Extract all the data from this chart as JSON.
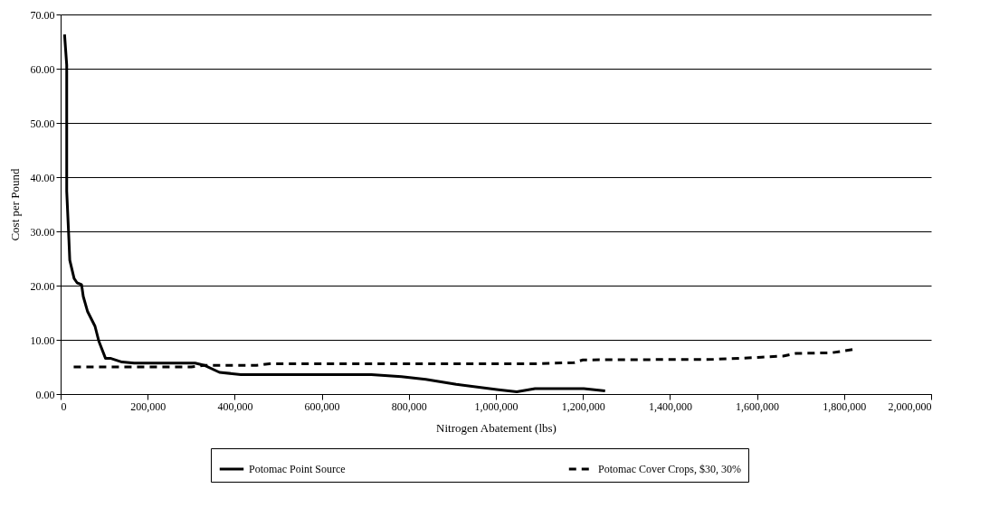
{
  "chart_data": {
    "type": "line",
    "xlabel": "Nitrogen Abatement (lbs)",
    "ylabel": "Cost per Pound",
    "xlim": [
      0,
      2000000
    ],
    "ylim": [
      0,
      70
    ],
    "xticks": [
      0,
      {
        "value": 200000,
        "label": "200,000"
      },
      {
        "value": 400000,
        "label": "400,000"
      },
      {
        "value": 600000,
        "label": "600,000"
      },
      {
        "value": 800000,
        "label": "800,000"
      },
      {
        "value": 1000000,
        "label": "1,000,000"
      },
      {
        "value": 1200000,
        "label": "1,200,000"
      },
      {
        "value": 1400000,
        "label": "1,400,000"
      },
      {
        "value": 1600000,
        "label": "1,600,000"
      },
      {
        "value": 1800000,
        "label": "1,800,000"
      },
      {
        "value": 2000000,
        "label": "2,000,000"
      }
    ],
    "yticks": [
      {
        "value": 0,
        "label": "0.00"
      },
      {
        "value": 10,
        "label": "10.00"
      },
      {
        "value": 20,
        "label": "20.00"
      },
      {
        "value": 30,
        "label": "30.00"
      },
      {
        "value": 40,
        "label": "40.00"
      },
      {
        "value": 50,
        "label": "50.00"
      },
      {
        "value": 60,
        "label": "60.00"
      },
      {
        "value": 70,
        "label": "70.00"
      }
    ],
    "grid": "y",
    "legend": "bottom",
    "marker": "none",
    "series": [
      {
        "name": "Potomac Point Source",
        "color": "#000000",
        "line_style": "solid",
        "x": [
          9000,
          14000,
          14000,
          19000,
          21000,
          31000,
          38000,
          48000,
          52000,
          62000,
          79000,
          88000,
          103000,
          114000,
          141000,
          169000,
          309000,
          330000,
          365000,
          414000,
          714000,
          783000,
          839000,
          909000,
          1006000,
          1048000,
          1090000,
          1202000,
          1251000
        ],
        "values": [
          66.3,
          60.7,
          37.4,
          28.5,
          24.7,
          21.3,
          20.5,
          20.2,
          18,
          15.2,
          12.5,
          9.7,
          6.6,
          6.6,
          5.9,
          5.7,
          5.7,
          5.3,
          4.0,
          3.6,
          3.6,
          3.2,
          2.7,
          1.8,
          0.8,
          0.4,
          1.0,
          1.0,
          0.6
        ]
      },
      {
        "name": "Potomac Cover Crops, $30, 30%",
        "color": "#000000",
        "line_style": "dashed",
        "x": [
          30000,
          300000,
          330000,
          450000,
          480000,
          1100000,
          1180000,
          1200000,
          1500000,
          1560000,
          1610000,
          1660000,
          1690000,
          1770000,
          1820000
        ],
        "values": [
          5.0,
          5.0,
          5.3,
          5.3,
          5.6,
          5.6,
          5.8,
          6.3,
          6.4,
          6.6,
          6.8,
          7.0,
          7.5,
          7.6,
          8.2
        ]
      }
    ]
  }
}
